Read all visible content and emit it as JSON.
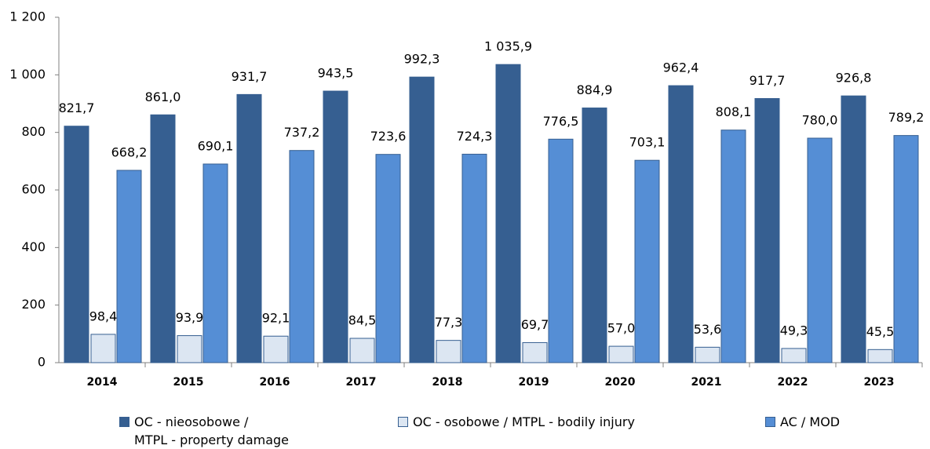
{
  "chart_data": {
    "type": "bar",
    "categories": [
      "2014",
      "2015",
      "2016",
      "2017",
      "2018",
      "2019",
      "2020",
      "2021",
      "2022",
      "2023"
    ],
    "series": [
      {
        "name": "OC - nieosobowe /\nMTPL  - property damage",
        "color": "#365f91",
        "values": [
          821.7,
          861.0,
          931.7,
          943.5,
          992.3,
          1035.9,
          884.9,
          962.4,
          917.7,
          926.8
        ],
        "value_labels": [
          "821,7",
          "861,0",
          "931,7",
          "943,5",
          "992,3",
          "1 035,9",
          "884,9",
          "962,4",
          "917,7",
          "926,8"
        ]
      },
      {
        "name": "OC - osobowe / MTPL - bodily injury",
        "color": "#dce6f2",
        "values": [
          98.4,
          93.9,
          92.1,
          84.5,
          77.3,
          69.7,
          57.0,
          53.6,
          49.3,
          45.5
        ],
        "value_labels": [
          "98,4",
          "93,9",
          "92,1",
          "84,5",
          "77,3",
          "69,7",
          "57,0",
          "53,6",
          "49,3",
          "45,5"
        ]
      },
      {
        "name": "AC / MOD",
        "color": "#558ed5",
        "values": [
          668.2,
          690.1,
          737.2,
          723.6,
          724.3,
          776.5,
          703.1,
          808.1,
          780.0,
          789.2
        ],
        "value_labels": [
          "668,2",
          "690,1",
          "737,2",
          "723,6",
          "724,3",
          "776,5",
          "703,1",
          "808,1",
          "780,0",
          "789,2"
        ]
      }
    ],
    "ylim": [
      0,
      1200
    ],
    "yticks": [
      0,
      200,
      400,
      600,
      800,
      {
        "value": 1000,
        "label": "1 000"
      },
      {
        "value": 1200,
        "label": "1 200"
      }
    ]
  }
}
